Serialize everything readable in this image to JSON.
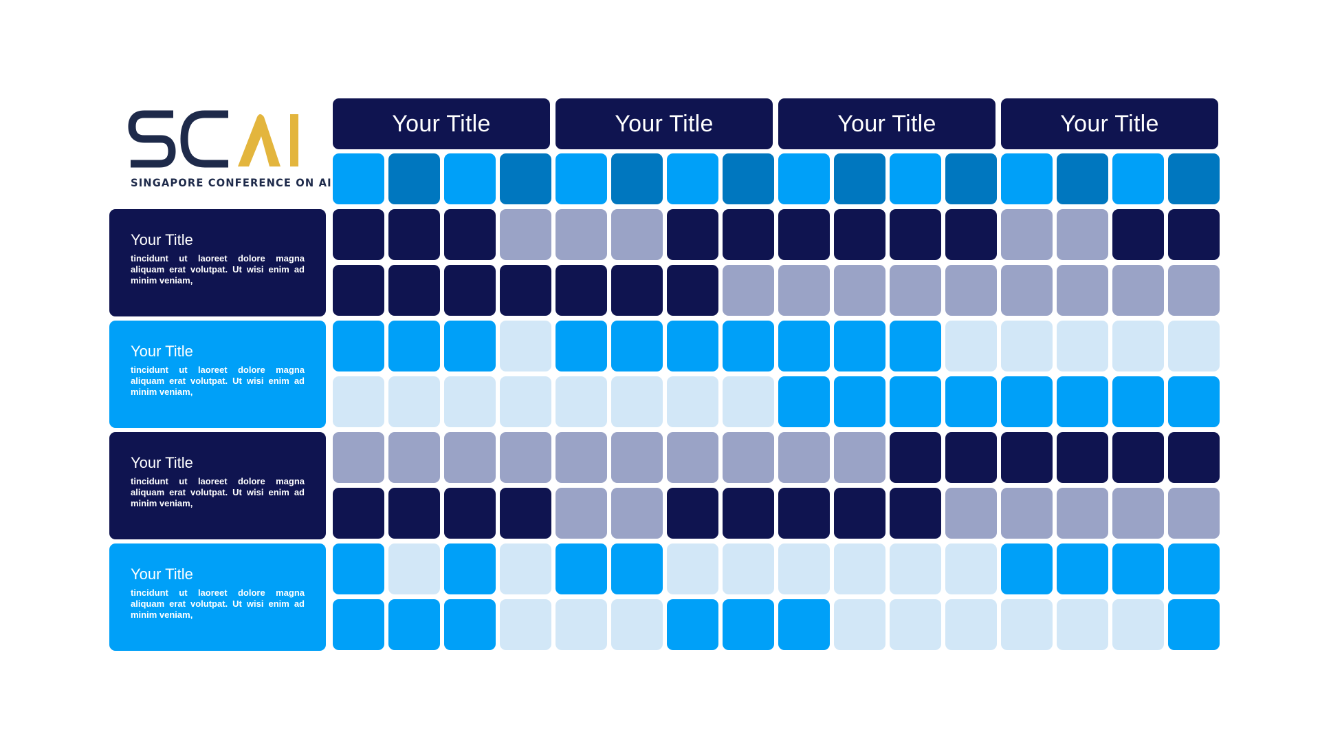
{
  "logo": {
    "letters_dark": "SC",
    "letters_gold": "AI",
    "tagline": "SINGAPORE CONFERENCE ON AI",
    "dark_color": "#1e2a4a",
    "gold_color": "#e3b53d"
  },
  "colors": {
    "navy": "#0f1450",
    "bright_blue": "#00a0f8",
    "steel_blue": "#0077bf",
    "gray_blue": "#9aa3c6",
    "light_blue": "#d2e7f7"
  },
  "headers": [
    {
      "label": "Your Title"
    },
    {
      "label": "Your Title"
    },
    {
      "label": "Your Title"
    },
    {
      "label": "Your Title"
    }
  ],
  "rows": [
    {
      "title": "Your Title",
      "desc": "tincidunt ut laoreet dolore  magna aliquam erat volutpat. Ut wisi enim ad  minim veniam,",
      "color": "navy"
    },
    {
      "title": "Your Title",
      "desc": "tincidunt ut laoreet dolore  magna aliquam erat volutpat. Ut wisi enim ad  minim veniam,",
      "color": "bright_blue"
    },
    {
      "title": "Your Title",
      "desc": "tincidunt ut laoreet dolore  magna aliquam erat volutpat. Ut wisi enim ad  minim veniam,",
      "color": "navy"
    },
    {
      "title": "Your Title",
      "desc": "tincidunt ut laoreet dolore  magna aliquam erat volutpat. Ut wisi enim ad  minim veniam,",
      "color": "bright_blue"
    }
  ],
  "grid": [
    "BSBSBSBSBSBSBSBS",
    "NNNGGGNNNNNNGGNN",
    "NNNNNNNGGGGGGGGG",
    "BBBLBBBBBBBLLLLL",
    "LLLLLLLLBBBBBBBB",
    "GGGGGGGGGGNNNNNN",
    "NNNNGGNNNNNGGGGG",
    "BLBLBBLLLLLLBBBB",
    "BBBLLLBBBLLLLLLB"
  ],
  "grid_legend": {
    "N": "navy",
    "B": "bright_blue",
    "S": "steel_blue",
    "G": "gray_blue",
    "L": "light_blue"
  }
}
